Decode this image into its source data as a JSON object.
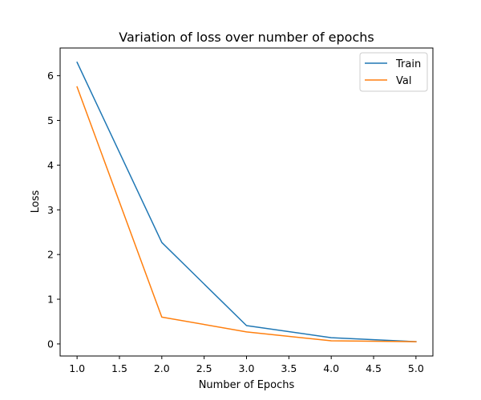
{
  "chart_data": {
    "type": "line",
    "title": "Variation of loss over number of epochs",
    "xlabel": "Number of Epochs",
    "ylabel": "Loss",
    "x": [
      1.0,
      2.0,
      3.0,
      4.0,
      5.0
    ],
    "series": [
      {
        "name": "Train",
        "values": [
          6.3,
          2.27,
          0.41,
          0.14,
          0.05
        ],
        "color": "#1f77b4"
      },
      {
        "name": "Val",
        "values": [
          5.75,
          0.6,
          0.27,
          0.07,
          0.05
        ],
        "color": "#ff7f0e"
      }
    ],
    "xlim": [
      0.8,
      5.2
    ],
    "ylim": [
      -0.27,
      6.62
    ],
    "xticks": [
      "1.0",
      "1.5",
      "2.0",
      "2.5",
      "3.0",
      "3.5",
      "4.0",
      "4.5",
      "5.0"
    ],
    "yticks": [
      "0",
      "1",
      "2",
      "3",
      "4",
      "5",
      "6"
    ],
    "grid": false,
    "legend_position": "top-right"
  }
}
